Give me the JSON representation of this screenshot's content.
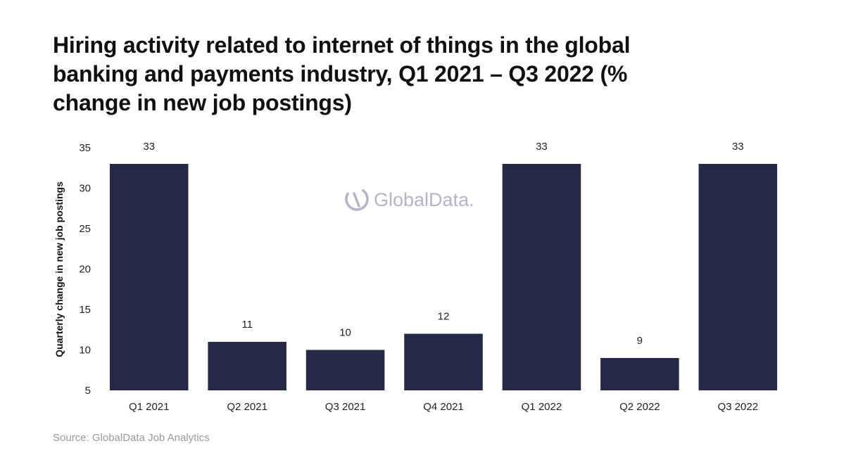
{
  "title": "Hiring activity related to internet of things in the global banking and payments industry, Q1 2021 – Q3 2022 (% change in new job postings)",
  "source": "Source: GlobalData Job Analytics",
  "watermark": "GlobalData.",
  "colors": {
    "bar": "#262847",
    "watermark": "#b7b2cc",
    "source": "#9a9a9a"
  },
  "chart_data": {
    "type": "bar",
    "title": "Hiring activity related to internet of things in the global banking and payments industry, Q1 2021 – Q3 2022 (% change in new job postings)",
    "categories": [
      "Q1 2021",
      "Q2 2021",
      "Q3 2021",
      "Q4 2021",
      "Q1 2022",
      "Q2 2022",
      "Q3 2022"
    ],
    "values": [
      33,
      11,
      10,
      12,
      33,
      9,
      33
    ],
    "data_labels": [
      "33",
      "11",
      "10",
      "12",
      "33",
      "9",
      "33"
    ],
    "xlabel": "",
    "ylabel": "Quarterly change in new job postings",
    "ylim": [
      5,
      35
    ],
    "yticks": [
      "5",
      "10",
      "15",
      "20",
      "25",
      "30",
      "35"
    ],
    "grid": false,
    "legend": "none"
  }
}
